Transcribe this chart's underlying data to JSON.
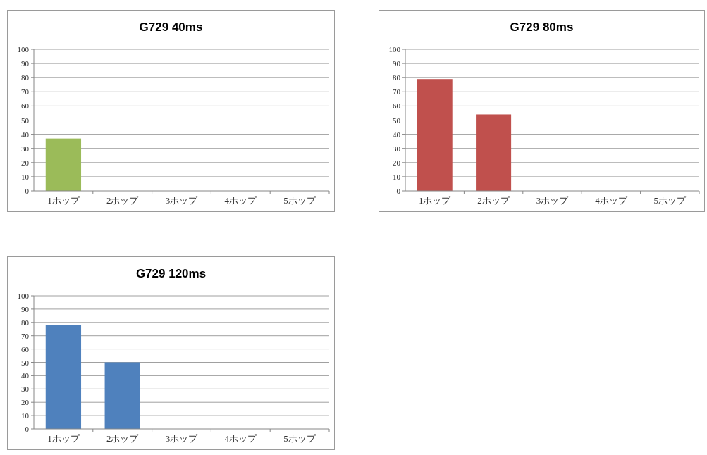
{
  "chart_data": [
    {
      "type": "bar",
      "title": "G729 40ms",
      "categories": [
        "1ホップ",
        "2ホップ",
        "3ホップ",
        "4ホップ",
        "5ホップ"
      ],
      "values": [
        37,
        0,
        0,
        0,
        0
      ],
      "color": "#9bbb59",
      "ylim": [
        0,
        100
      ],
      "yticks": [
        0,
        10,
        20,
        30,
        40,
        50,
        60,
        70,
        80,
        90,
        100
      ],
      "grid": "y"
    },
    {
      "type": "bar",
      "title": "G729 80ms",
      "categories": [
        "1ホップ",
        "2ホップ",
        "3ホップ",
        "4ホップ",
        "5ホップ"
      ],
      "values": [
        79,
        54,
        0,
        0,
        0
      ],
      "color": "#c0504d",
      "ylim": [
        0,
        100
      ],
      "yticks": [
        0,
        10,
        20,
        30,
        40,
        50,
        60,
        70,
        80,
        90,
        100
      ],
      "grid": "y"
    },
    {
      "type": "bar",
      "title": "G729 120ms",
      "categories": [
        "1ホップ",
        "2ホップ",
        "3ホップ",
        "4ホップ",
        "5ホップ"
      ],
      "values": [
        78,
        50,
        0,
        0,
        0
      ],
      "color": "#4f81bd",
      "ylim": [
        0,
        100
      ],
      "yticks": [
        0,
        10,
        20,
        30,
        40,
        50,
        60,
        70,
        80,
        90,
        100
      ],
      "grid": "y"
    }
  ]
}
